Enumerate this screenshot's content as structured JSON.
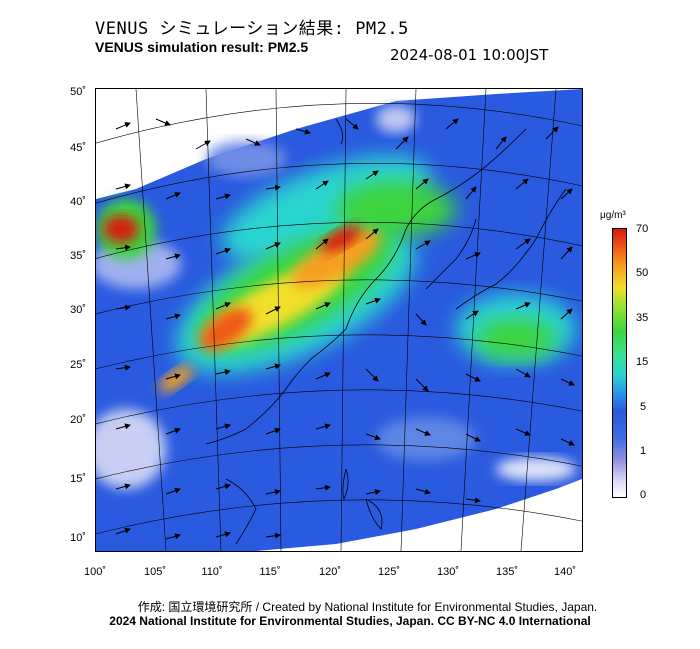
{
  "header": {
    "title_jp": "VENUS シミュレーション結果: PM2.5",
    "title_en": "VENUS simulation result: PM2.5",
    "timestamp": "2024-08-01 10:00JST"
  },
  "map": {
    "lat_ticks": [
      "50˚",
      "45˚",
      "40˚",
      "35˚",
      "30˚",
      "25˚",
      "20˚",
      "15˚",
      "10˚"
    ],
    "lon_ticks": [
      "100˚",
      "105˚",
      "110˚",
      "115˚",
      "120˚",
      "125˚",
      "130˚",
      "135˚",
      "140˚"
    ],
    "variable": "PM2.5 concentration with wind vectors"
  },
  "colorbar": {
    "unit": "μg/m³",
    "labels": [
      "70",
      "50",
      "35",
      "15",
      "5",
      "1",
      "0"
    ],
    "colors": [
      "#ffffff",
      "#8f8fe0",
      "#2a5adf",
      "#2ad4d0",
      "#3ed43e",
      "#f0e02a",
      "#ee5a18",
      "#d61a10"
    ]
  },
  "footer": {
    "credit_line1": "作成: 国立環境研究所 / Created by National Institute for Environmental Studies, Japan.",
    "credit_line2": "2024 National Institute for Environmental Studies, Japan. CC BY-NC 4.0 International"
  }
}
